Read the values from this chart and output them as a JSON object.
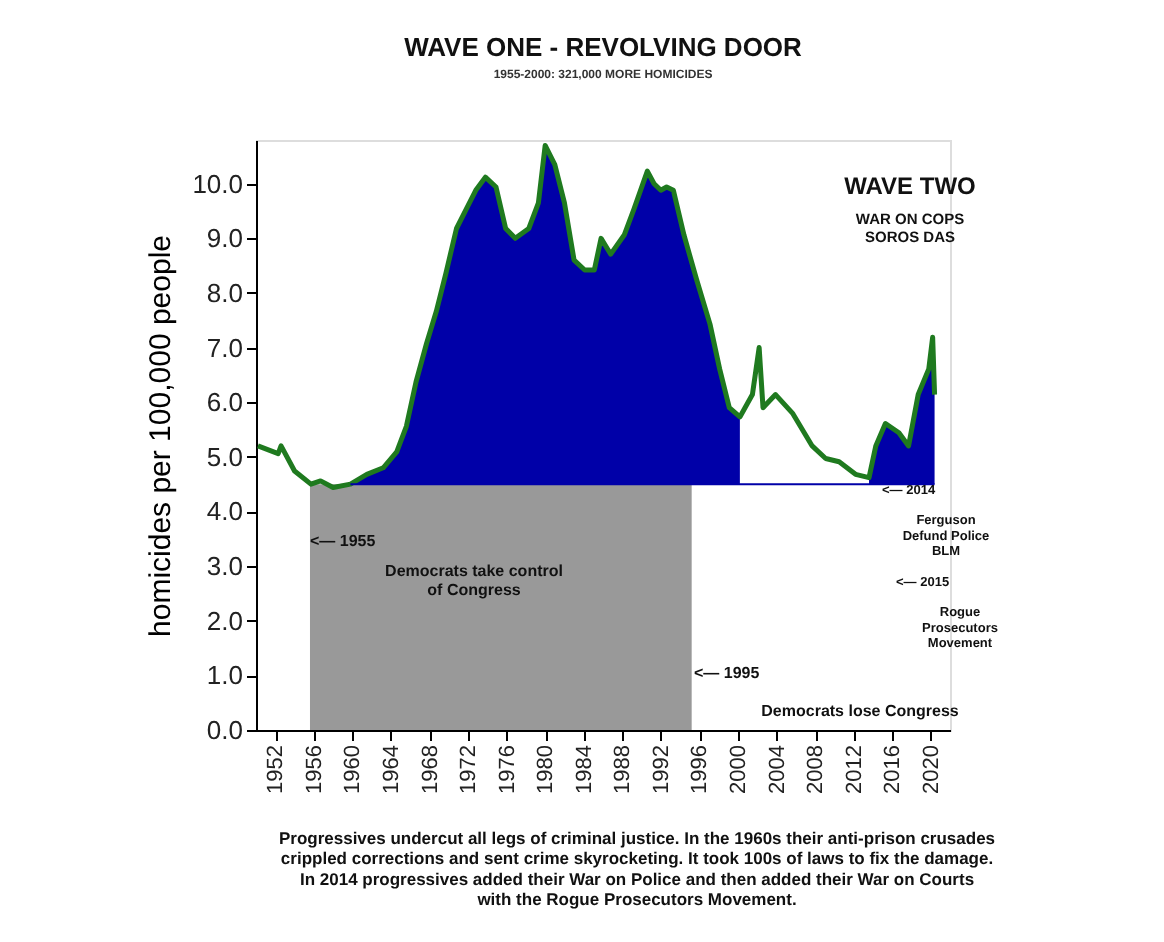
{
  "chart_data": {
    "type": "line",
    "title": "WAVE ONE - REVOLVING DOOR",
    "subtitle": "1955-2000: 321,000 MORE HOMICIDES",
    "ylabel": "homicides per 100,000 people",
    "x": [
      1950.2,
      1952.3,
      1952.6,
      1954,
      1955.7,
      1956.7,
      1958,
      1959.8,
      1961.5,
      1963.2,
      1964.6,
      1965.6,
      1966.6,
      1967.7,
      1968.7,
      1969.7,
      1970.8,
      1971.8,
      1972.8,
      1973.8,
      1974.9,
      1975.9,
      1976.9,
      1978.3,
      1979.3,
      1980,
      1981,
      1982,
      1983,
      1984.1,
      1985.1,
      1985.8,
      1986.8,
      1988.2,
      1989.2,
      1990.6,
      1991.3,
      1992,
      1992.6,
      1993.3,
      1994.4,
      1995.7,
      1997.1,
      1998.1,
      1999.1,
      2000.2,
      2001.5,
      2002.2,
      2002.6,
      2003.9,
      2005.7,
      2007.7,
      2009.1,
      2010.5,
      2012.2,
      2013.6,
      2014.3,
      2015.3,
      2016.7,
      2017.7,
      2018.7,
      2019.8,
      2020.2,
      2020.4
    ],
    "series": [
      {
        "type": "area",
        "color": "#0000a8",
        "values": [
          null,
          null,
          null,
          null,
          null,
          null,
          null,
          4.5,
          4.68,
          4.8,
          5.09,
          5.56,
          6.37,
          7.08,
          7.66,
          8.36,
          9.18,
          9.53,
          9.88,
          10.12,
          9.94,
          9.18,
          9.0,
          9.18,
          9.65,
          10.7,
          10.35,
          9.65,
          8.6,
          8.42,
          8.42,
          9.0,
          8.71,
          9.06,
          9.53,
          10.23,
          10.0,
          9.88,
          9.94,
          9.88,
          9.06,
          8.25,
          7.43,
          6.61,
          5.9,
          5.73,
          null,
          null,
          null,
          null,
          null,
          null,
          null,
          null,
          null,
          4.62,
          5.2,
          5.61,
          5.44,
          5.2,
          6.14,
          6.61,
          7.19,
          6.14
        ]
      },
      {
        "color": "#1f7a1f",
        "values": [
          5.2,
          5.06,
          5.2,
          4.74,
          4.5,
          4.56,
          4.44,
          4.5,
          4.68,
          4.8,
          5.09,
          5.56,
          6.37,
          7.08,
          7.66,
          8.36,
          9.18,
          9.53,
          9.88,
          10.12,
          9.94,
          9.18,
          9.0,
          9.18,
          9.65,
          10.7,
          10.35,
          9.65,
          8.6,
          8.42,
          8.42,
          9.0,
          8.71,
          9.06,
          9.53,
          10.23,
          10.0,
          9.88,
          9.94,
          9.88,
          9.06,
          8.25,
          7.43,
          6.61,
          5.9,
          5.73,
          6.14,
          7.0,
          5.9,
          6.14,
          5.79,
          5.2,
          4.97,
          4.91,
          4.68,
          4.62,
          5.2,
          5.61,
          5.44,
          5.2,
          6.14,
          6.61,
          7.19,
          6.14
        ]
      }
    ],
    "ref_lines": [
      {
        "axis": "y",
        "value": 4.5,
        "color": "#0000a8"
      }
    ],
    "bands": [
      {
        "axis": "x",
        "from": 1955.6,
        "to": 1995.2,
        "color": "#999999"
      }
    ],
    "xlim": [
      1950,
      2022
    ],
    "xticks": [
      1952,
      1956,
      1960,
      1964,
      1968,
      1972,
      1976,
      1980,
      1984,
      1988,
      1992,
      1996,
      2000,
      2004,
      2008,
      2012,
      2016,
      2020
    ],
    "ylim": [
      0,
      10.8
    ],
    "yticks": [
      {
        "value": 0,
        "label": "0.0"
      },
      {
        "value": 1,
        "label": "1.0"
      },
      {
        "value": 2,
        "label": "2.0"
      },
      {
        "value": 3,
        "label": "3.0"
      },
      {
        "value": 4,
        "label": "4.0"
      },
      {
        "value": 5,
        "label": "5.0"
      },
      {
        "value": 6,
        "label": "6.0"
      },
      {
        "value": 7,
        "label": "7.0"
      },
      {
        "value": 8,
        "label": "8.0"
      },
      {
        "value": 9,
        "label": "9.0"
      },
      {
        "value": 10,
        "label": "10.0"
      }
    ],
    "grid": false,
    "annotations": [
      "<— 1955",
      "Democrats take control\nof Congress",
      "<— 1995",
      "Democrats lose Congress",
      "<— 2014",
      "Ferguson\nDefund Police\nBLM",
      "<— 2015",
      "Rogue\nProsecutors\nMovement",
      "WAVE TWO",
      "WAR ON COPS\nSOROS DAS",
      "Progressives undercut all legs of criminal justice. In the 1960s their anti-prison crusades\ncrippled corrections and sent crime skyrocketing.  It took 100s of laws to fix the damage.\nIn 2014 progressives added their War on Police and then added their War on Courts\nwith the Rogue Prosecutors Movement."
    ]
  }
}
